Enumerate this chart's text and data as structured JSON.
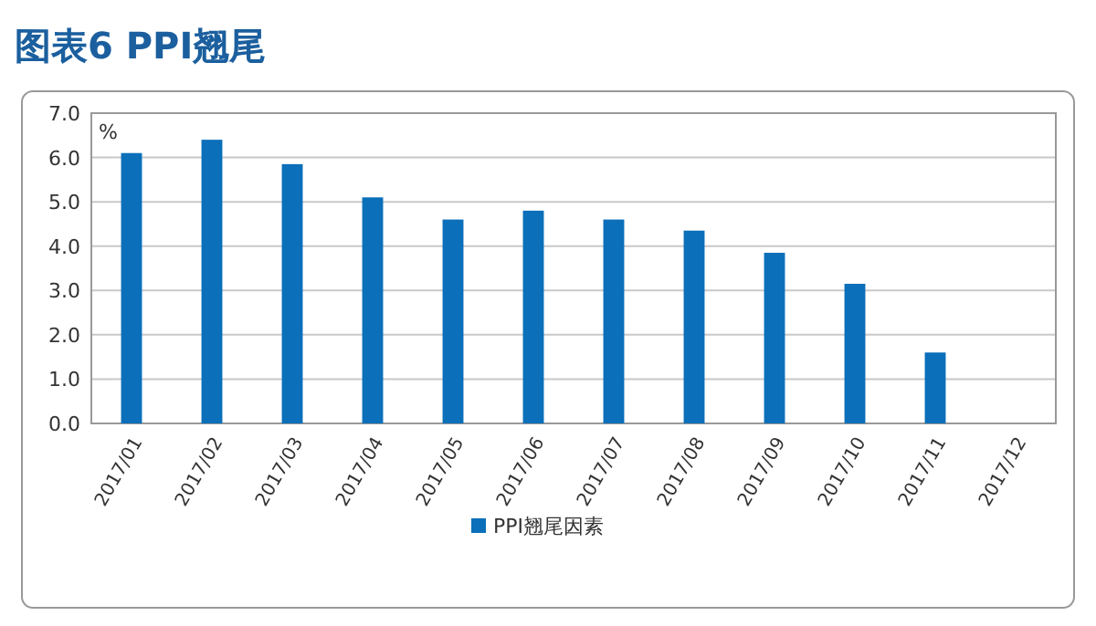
{
  "chart_data": {
    "type": "bar",
    "title": "图表6  PPI翘尾",
    "ylabel": "%",
    "categories": [
      "2017/01",
      "2017/02",
      "2017/03",
      "2017/04",
      "2017/05",
      "2017/06",
      "2017/07",
      "2017/08",
      "2017/09",
      "2017/10",
      "2017/11",
      "2017/12"
    ],
    "series": [
      {
        "name": "PPI翘尾因素",
        "color": "#0b6fba",
        "values": [
          6.1,
          6.4,
          5.85,
          5.1,
          4.6,
          4.8,
          4.6,
          4.35,
          3.85,
          3.15,
          1.6,
          null
        ]
      }
    ],
    "ylim": [
      0,
      7
    ],
    "yticks": [
      {
        "value": 0,
        "label": "0.0"
      },
      {
        "value": 1,
        "label": "1.0"
      },
      {
        "value": 2,
        "label": "2.0"
      },
      {
        "value": 3,
        "label": "3.0"
      },
      {
        "value": 4,
        "label": "4.0"
      },
      {
        "value": 5,
        "label": "5.0"
      },
      {
        "value": 6,
        "label": "6.0"
      },
      {
        "value": 7,
        "label": "7.0"
      }
    ],
    "grid": "y",
    "legend": "bottom"
  }
}
